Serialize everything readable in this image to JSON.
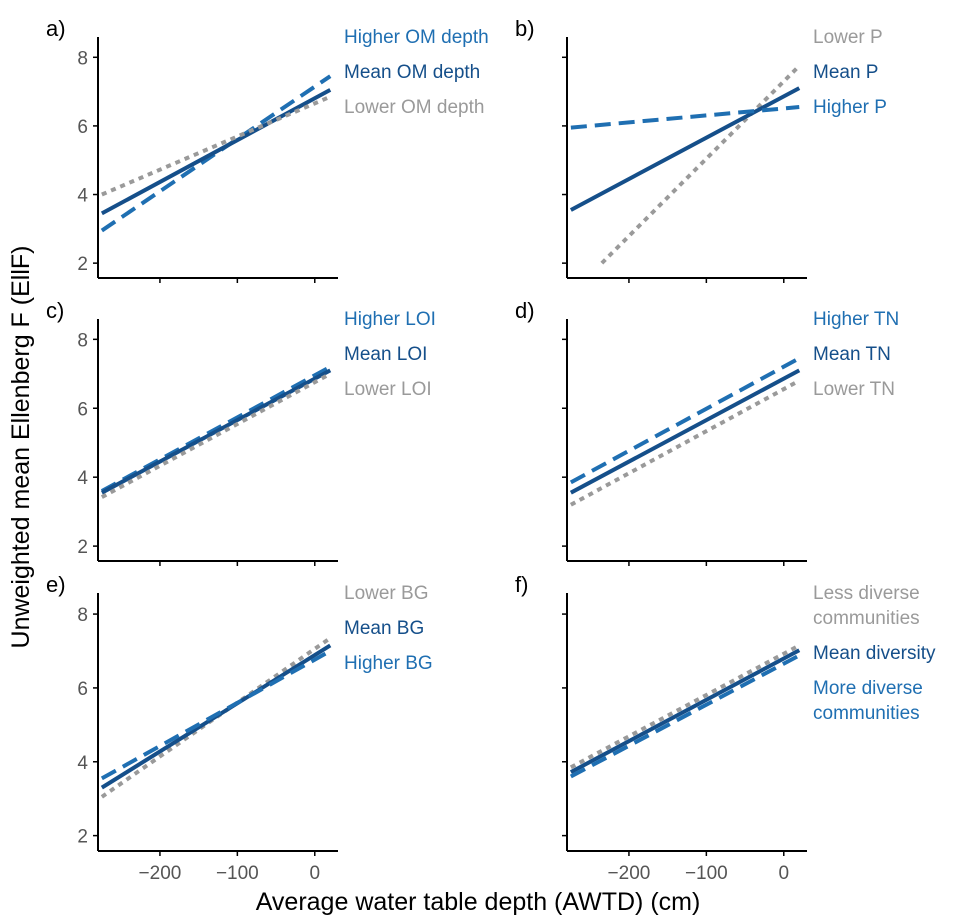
{
  "figure": {
    "ylabel": "Unweighted mean Ellenberg F (EllF)",
    "xlabel": "Average water table depth (AWTD) (cm)"
  },
  "colors": {
    "higher": "#1f6fb2",
    "mean": "#154f8a",
    "lower": "#9a9a9a",
    "axis": "#000000",
    "tick_text": "#555555"
  },
  "chart_data": [
    {
      "type": "line",
      "panel": "a)",
      "xlim": [
        -280,
        30
      ],
      "ylim": [
        1.8,
        8.3
      ],
      "yticks": [
        2,
        4,
        6,
        8
      ],
      "xticks": [
        -200,
        -100,
        0
      ],
      "show_yticklabels": true,
      "show_xticklabels": false,
      "series": [
        {
          "name": "Higher OM depth",
          "style": "dash",
          "color": "#1f6fb2",
          "x": [
            -275,
            20
          ],
          "y": [
            2.95,
            7.45
          ]
        },
        {
          "name": "Mean OM depth",
          "style": "solid",
          "color": "#154f8a",
          "x": [
            -275,
            20
          ],
          "y": [
            3.45,
            7.05
          ]
        },
        {
          "name": "Lower OM depth",
          "style": "dot",
          "color": "#9a9a9a",
          "x": [
            -275,
            20
          ],
          "y": [
            4.0,
            6.85
          ]
        }
      ]
    },
    {
      "type": "line",
      "panel": "b)",
      "xlim": [
        -280,
        30
      ],
      "ylim": [
        1.8,
        8.3
      ],
      "yticks": [
        2,
        4,
        6,
        8
      ],
      "xticks": [
        -200,
        -100,
        0
      ],
      "show_yticklabels": false,
      "show_xticklabels": false,
      "series": [
        {
          "name": "Lower P",
          "style": "dot",
          "color": "#9a9a9a",
          "x": [
            -235,
            20
          ],
          "y": [
            2.0,
            7.75
          ]
        },
        {
          "name": "Mean P",
          "style": "solid",
          "color": "#154f8a",
          "x": [
            -275,
            20
          ],
          "y": [
            3.55,
            7.1
          ]
        },
        {
          "name": "Higher P",
          "style": "dash",
          "color": "#1f6fb2",
          "x": [
            -275,
            20
          ],
          "y": [
            5.95,
            6.55
          ]
        }
      ]
    },
    {
      "type": "line",
      "panel": "c)",
      "xlim": [
        -280,
        30
      ],
      "ylim": [
        1.8,
        8.3
      ],
      "yticks": [
        2,
        4,
        6,
        8
      ],
      "xticks": [
        -200,
        -100,
        0
      ],
      "show_yticklabels": true,
      "show_xticklabels": false,
      "series": [
        {
          "name": "Higher LOI",
          "style": "dash",
          "color": "#1f6fb2",
          "x": [
            -275,
            20
          ],
          "y": [
            3.6,
            7.2
          ]
        },
        {
          "name": "Mean LOI",
          "style": "solid",
          "color": "#154f8a",
          "x": [
            -275,
            20
          ],
          "y": [
            3.55,
            7.1
          ]
        },
        {
          "name": "Lower LOI",
          "style": "dot",
          "color": "#9a9a9a",
          "x": [
            -275,
            20
          ],
          "y": [
            3.42,
            7.0
          ]
        }
      ]
    },
    {
      "type": "line",
      "panel": "d)",
      "xlim": [
        -280,
        30
      ],
      "ylim": [
        1.8,
        8.3
      ],
      "yticks": [
        2,
        4,
        6,
        8
      ],
      "xticks": [
        -200,
        -100,
        0
      ],
      "show_yticklabels": false,
      "show_xticklabels": false,
      "series": [
        {
          "name": "Higher TN",
          "style": "dash",
          "color": "#1f6fb2",
          "x": [
            -275,
            20
          ],
          "y": [
            3.85,
            7.45
          ]
        },
        {
          "name": "Mean TN",
          "style": "solid",
          "color": "#154f8a",
          "x": [
            -275,
            20
          ],
          "y": [
            3.55,
            7.1
          ]
        },
        {
          "name": "Lower TN",
          "style": "dot",
          "color": "#9a9a9a",
          "x": [
            -275,
            20
          ],
          "y": [
            3.2,
            6.8
          ]
        }
      ]
    },
    {
      "type": "line",
      "panel": "e)",
      "xlim": [
        -280,
        30
      ],
      "ylim": [
        1.8,
        8.3
      ],
      "yticks": [
        2,
        4,
        6,
        8
      ],
      "xticks": [
        -200,
        -100,
        0
      ],
      "show_yticklabels": true,
      "show_xticklabels": true,
      "series": [
        {
          "name": "Lower BG",
          "style": "dot",
          "color": "#9a9a9a",
          "x": [
            -275,
            20
          ],
          "y": [
            3.05,
            7.35
          ]
        },
        {
          "name": "Mean BG",
          "style": "solid",
          "color": "#154f8a",
          "x": [
            -275,
            20
          ],
          "y": [
            3.3,
            7.15
          ]
        },
        {
          "name": "Higher BG",
          "style": "dash",
          "color": "#1f6fb2",
          "x": [
            -275,
            20
          ],
          "y": [
            3.55,
            7.0
          ]
        }
      ]
    },
    {
      "type": "line",
      "panel": "f)",
      "xlim": [
        -280,
        30
      ],
      "ylim": [
        1.8,
        8.3
      ],
      "yticks": [
        2,
        4,
        6,
        8
      ],
      "xticks": [
        -200,
        -100,
        0
      ],
      "show_yticklabels": false,
      "show_xticklabels": true,
      "series": [
        {
          "name": "Less diverse communities",
          "style": "dot",
          "color": "#9a9a9a",
          "x": [
            -275,
            20
          ],
          "y": [
            3.85,
            7.15
          ]
        },
        {
          "name": "Mean diversity",
          "style": "solid",
          "color": "#154f8a",
          "x": [
            -275,
            20
          ],
          "y": [
            3.72,
            7.02
          ]
        },
        {
          "name": "More diverse communities",
          "style": "dash",
          "color": "#1f6fb2",
          "x": [
            -275,
            20
          ],
          "y": [
            3.6,
            6.88
          ]
        }
      ]
    }
  ],
  "legends": [
    [
      {
        "lines": [
          "Higher OM depth"
        ],
        "color": "#1f6fb2"
      },
      {
        "lines": [
          "Mean OM depth"
        ],
        "color": "#154f8a"
      },
      {
        "lines": [
          "Lower OM depth"
        ],
        "color": "#9a9a9a"
      }
    ],
    [
      {
        "lines": [
          "Lower P"
        ],
        "color": "#9a9a9a"
      },
      {
        "lines": [
          "Mean P"
        ],
        "color": "#154f8a"
      },
      {
        "lines": [
          "Higher P"
        ],
        "color": "#1f6fb2"
      }
    ],
    [
      {
        "lines": [
          "Higher LOI"
        ],
        "color": "#1f6fb2"
      },
      {
        "lines": [
          "Mean LOI"
        ],
        "color": "#154f8a"
      },
      {
        "lines": [
          "Lower LOI"
        ],
        "color": "#9a9a9a"
      }
    ],
    [
      {
        "lines": [
          "Higher TN"
        ],
        "color": "#1f6fb2"
      },
      {
        "lines": [
          "Mean TN"
        ],
        "color": "#154f8a"
      },
      {
        "lines": [
          "Lower TN"
        ],
        "color": "#9a9a9a"
      }
    ],
    [
      {
        "lines": [
          "Lower BG"
        ],
        "color": "#9a9a9a"
      },
      {
        "lines": [
          "Mean BG"
        ],
        "color": "#154f8a"
      },
      {
        "lines": [
          "Higher BG"
        ],
        "color": "#1f6fb2"
      }
    ],
    [
      {
        "lines": [
          "Less diverse",
          "communities"
        ],
        "color": "#9a9a9a"
      },
      {
        "lines": [
          "Mean diversity"
        ],
        "color": "#154f8a"
      },
      {
        "lines": [
          "More diverse",
          "communities"
        ],
        "color": "#1f6fb2"
      }
    ]
  ]
}
